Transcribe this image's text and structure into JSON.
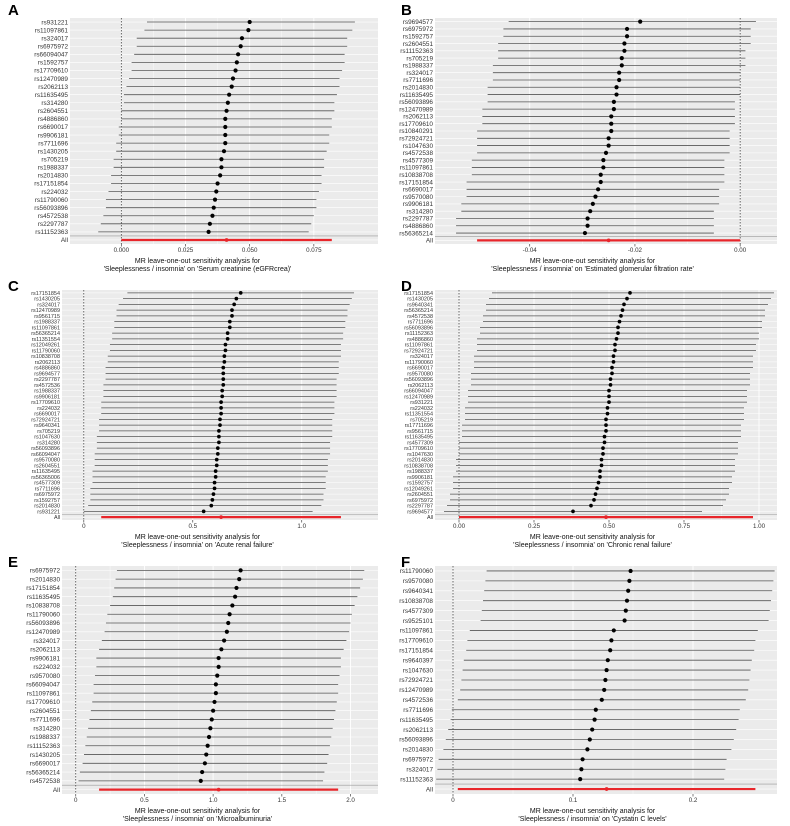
{
  "figure": {
    "panels": [
      "A",
      "B",
      "C",
      "D",
      "E",
      "F"
    ]
  },
  "colors": {
    "panel_bg": "#ebebeb",
    "grid": "#ffffff",
    "point": "#000000",
    "summary": "#e8262b",
    "whisker": "#555555",
    "text": "#333333"
  },
  "chart_data": [
    {
      "panel": "A",
      "type": "forest",
      "title_line1": "MR leave-one-out sensitivity analysis for",
      "title_line2": "'Sleeplessness / insomnia'  on  'Serum creatinine (eGFRcrea)'",
      "xlim": [
        -0.02,
        0.1
      ],
      "xticks": [
        0.0,
        0.025,
        0.05,
        0.075
      ],
      "xtick_labels": [
        "0.000",
        "0.025",
        "0.050",
        "0.075"
      ],
      "ref_line": 0,
      "labels": [
        "rs931221",
        "rs11097861",
        "rs324017",
        "rs6975972",
        "rs66094047",
        "rs1592757",
        "rs17709610",
        "rs12470989",
        "rs2062113",
        "rs11635495",
        "rs314280",
        "rs2604551",
        "rs4886860",
        "rs6690017",
        "rs9906181",
        "rs7711696",
        "rs1430205",
        "rs705219",
        "rs1988337",
        "rs2014830",
        "rs17151854",
        "rs224032",
        "rs11790060",
        "rs56093896",
        "rs4572538",
        "rs2297787",
        "rs11152363"
      ],
      "estimates": [
        0.05,
        0.0495,
        0.047,
        0.0465,
        0.0455,
        0.045,
        0.0445,
        0.0435,
        0.043,
        0.042,
        0.0415,
        0.041,
        0.0405,
        0.0405,
        0.0405,
        0.0405,
        0.04,
        0.039,
        0.039,
        0.0385,
        0.0375,
        0.037,
        0.0365,
        0.036,
        0.0355,
        0.0345,
        0.034
      ],
      "lower": [
        0.01,
        0.009,
        0.006,
        0.006,
        0.005,
        0.004,
        0.004,
        0.003,
        0.002,
        0.001,
        0.001,
        0.0,
        0.0,
        -0.001,
        -0.001,
        -0.002,
        -0.002,
        -0.003,
        -0.003,
        -0.004,
        -0.004,
        -0.005,
        -0.006,
        -0.006,
        -0.007,
        -0.008,
        -0.009
      ],
      "upper": [
        0.091,
        0.09,
        0.088,
        0.088,
        0.087,
        0.087,
        0.086,
        0.085,
        0.085,
        0.084,
        0.083,
        0.083,
        0.082,
        0.082,
        0.081,
        0.081,
        0.08,
        0.079,
        0.079,
        0.078,
        0.078,
        0.077,
        0.076,
        0.076,
        0.075,
        0.074,
        0.073
      ],
      "summary": {
        "label": "All",
        "estimate": 0.041,
        "lower": 0.0,
        "upper": 0.082
      }
    },
    {
      "panel": "B",
      "type": "forest",
      "title_line1": "MR leave-one-out sensitivity analysis for",
      "title_line2": "'Sleeplessness / insomnia'  on  'Estimated glomerular filtration rate'",
      "xlim": [
        -0.058,
        0.007
      ],
      "xticks": [
        -0.04,
        -0.02,
        0.0
      ],
      "xtick_labels": [
        "-0.04",
        "-0.02",
        "0.00"
      ],
      "ref_line": 0,
      "labels": [
        "rs9694577",
        "rs6975972",
        "rs1592757",
        "rs2604551",
        "rs11152363",
        "rs705219",
        "rs1988337",
        "rs324017",
        "rs7711696",
        "rs2014830",
        "rs11635495",
        "rs56093896",
        "rs12470989",
        "rs2062113",
        "rs17709610",
        "rs10840291",
        "rs72924721",
        "rs1047630",
        "rs4572538",
        "rs4577309",
        "rs11097861",
        "rs10838708",
        "rs17151854",
        "rs6690017",
        "rs9570080",
        "rs9906181",
        "rs314280",
        "rs2297787",
        "rs4886860",
        "rs56365214"
      ],
      "estimates": [
        -0.019,
        -0.0215,
        -0.0215,
        -0.022,
        -0.022,
        -0.0225,
        -0.0225,
        -0.023,
        -0.023,
        -0.0235,
        -0.0235,
        -0.024,
        -0.024,
        -0.0245,
        -0.0245,
        -0.0245,
        -0.025,
        -0.025,
        -0.0255,
        -0.026,
        -0.026,
        -0.0265,
        -0.0265,
        -0.027,
        -0.0275,
        -0.028,
        -0.0285,
        -0.029,
        -0.029,
        -0.0295
      ],
      "lower": [
        -0.044,
        -0.045,
        -0.045,
        -0.046,
        -0.046,
        -0.046,
        -0.047,
        -0.047,
        -0.047,
        -0.048,
        -0.048,
        -0.048,
        -0.049,
        -0.049,
        -0.049,
        -0.05,
        -0.05,
        -0.05,
        -0.05,
        -0.051,
        -0.051,
        -0.051,
        -0.052,
        -0.052,
        -0.052,
        -0.053,
        -0.053,
        -0.054,
        -0.054,
        -0.054
      ],
      "upper": [
        0.003,
        0.002,
        0.002,
        0.002,
        0.001,
        0.001,
        0.001,
        0.0,
        0.0,
        0.0,
        0.0,
        -0.001,
        -0.001,
        -0.001,
        -0.001,
        -0.002,
        -0.002,
        -0.002,
        -0.002,
        -0.003,
        -0.003,
        -0.003,
        -0.003,
        -0.004,
        -0.004,
        -0.004,
        -0.005,
        -0.005,
        -0.005,
        -0.005
      ],
      "summary": {
        "label": "All",
        "estimate": -0.025,
        "lower": -0.05,
        "upper": 0.0
      }
    },
    {
      "panel": "C",
      "type": "forest",
      "title_line1": "MR leave-one-out sensitivity analysis for",
      "title_line2": "'Sleeplessness / insomnia'  on  'Acute renal failure'",
      "xlim": [
        -0.1,
        1.35
      ],
      "xticks": [
        0,
        0.5,
        1.0
      ],
      "xtick_labels": [
        "0",
        "0.5",
        "1.0"
      ],
      "ref_line": 0,
      "labels": [
        "rs17151854",
        "rs1430205",
        "rs324017",
        "rs12470989",
        "rs9561715",
        "rs1988337",
        "rs11097861",
        "rs56365214",
        "rs11351554",
        "rs12049261",
        "rs11790060",
        "rs10838708",
        "rs2062113",
        "rs4886860",
        "rs9694577",
        "rs2297787",
        "rs4572536",
        "rs1988337",
        "rs9906181",
        "rs17709610",
        "rs224032",
        "rs6690017",
        "rs72924721",
        "rs9640341",
        "rs705219",
        "rs1047630",
        "rs314280",
        "rs56093896",
        "rs66094047",
        "rs9570080",
        "rs2604551",
        "rs11635495",
        "rs56365006",
        "rs4577309",
        "rs7711696",
        "rs6975972",
        "rs1592757",
        "rs2014830",
        "rs931221"
      ],
      "estimates": [
        0.72,
        0.7,
        0.69,
        0.68,
        0.68,
        0.67,
        0.67,
        0.66,
        0.66,
        0.65,
        0.65,
        0.645,
        0.645,
        0.64,
        0.64,
        0.64,
        0.64,
        0.635,
        0.635,
        0.63,
        0.63,
        0.63,
        0.625,
        0.625,
        0.62,
        0.62,
        0.62,
        0.615,
        0.615,
        0.61,
        0.61,
        0.605,
        0.605,
        0.6,
        0.6,
        0.595,
        0.59,
        0.585,
        0.55
      ],
      "lower": [
        0.2,
        0.18,
        0.16,
        0.15,
        0.15,
        0.14,
        0.14,
        0.13,
        0.13,
        0.12,
        0.12,
        0.11,
        0.11,
        0.1,
        0.1,
        0.1,
        0.09,
        0.09,
        0.09,
        0.08,
        0.08,
        0.08,
        0.07,
        0.07,
        0.07,
        0.06,
        0.06,
        0.06,
        0.05,
        0.05,
        0.05,
        0.04,
        0.04,
        0.04,
        0.03,
        0.03,
        0.03,
        0.02,
        0.0
      ],
      "upper": [
        1.24,
        1.23,
        1.22,
        1.21,
        1.21,
        1.2,
        1.2,
        1.19,
        1.19,
        1.18,
        1.18,
        1.18,
        1.17,
        1.17,
        1.17,
        1.16,
        1.16,
        1.16,
        1.16,
        1.15,
        1.15,
        1.15,
        1.14,
        1.14,
        1.14,
        1.14,
        1.13,
        1.13,
        1.13,
        1.12,
        1.12,
        1.12,
        1.11,
        1.11,
        1.11,
        1.1,
        1.1,
        1.09,
        1.05
      ],
      "summary": {
        "label": "All",
        "estimate": 0.63,
        "lower": 0.08,
        "upper": 1.18
      }
    },
    {
      "panel": "D",
      "type": "forest",
      "title_line1": "MR leave-one-out sensitivity analysis for",
      "title_line2": "'Sleeplessness / insomnia'  on  'Chronic renal failure'",
      "xlim": [
        -0.08,
        1.06
      ],
      "xticks": [
        0,
        0.25,
        0.5,
        0.75,
        1.0
      ],
      "xtick_labels": [
        "0.00",
        "0.25",
        "0.50",
        "0.75",
        "1.00"
      ],
      "ref_line": 0,
      "labels": [
        "rs17151854",
        "rs1430205",
        "rs9640341",
        "rs56365214",
        "rs4572538",
        "rs7711696",
        "rs56093896",
        "rs11152363",
        "rs4886860",
        "rs11097861",
        "rs72924721",
        "rs324017",
        "rs11790060",
        "rs6690017",
        "rs9570080",
        "rs56093896",
        "rs2062113",
        "rs66094047",
        "rs12470989",
        "rs931221",
        "rs224032",
        "rs11351554",
        "rs705219",
        "rs17711696",
        "rs9561715",
        "rs11635495",
        "rs4577309",
        "rs17709610",
        "rs1047630",
        "rs2014830",
        "rs10838708",
        "rs1988337",
        "rs9906181",
        "rs1592757",
        "rs12049261",
        "rs2604551",
        "rs6975972",
        "rs2297787",
        "rs9694577"
      ],
      "estimates": [
        0.57,
        0.56,
        0.55,
        0.545,
        0.54,
        0.535,
        0.53,
        0.53,
        0.525,
        0.52,
        0.52,
        0.515,
        0.515,
        0.51,
        0.51,
        0.505,
        0.505,
        0.5,
        0.5,
        0.5,
        0.495,
        0.495,
        0.49,
        0.49,
        0.49,
        0.485,
        0.485,
        0.48,
        0.48,
        0.475,
        0.475,
        0.47,
        0.47,
        0.465,
        0.46,
        0.455,
        0.45,
        0.44,
        0.38
      ],
      "lower": [
        0.11,
        0.1,
        0.09,
        0.09,
        0.08,
        0.08,
        0.07,
        0.07,
        0.06,
        0.06,
        0.06,
        0.05,
        0.05,
        0.05,
        0.04,
        0.04,
        0.04,
        0.03,
        0.03,
        0.03,
        0.02,
        0.02,
        0.02,
        0.01,
        0.01,
        0.01,
        0.0,
        0.0,
        0.0,
        -0.01,
        -0.01,
        -0.01,
        -0.02,
        -0.02,
        -0.02,
        -0.03,
        -0.03,
        -0.04,
        -0.05
      ],
      "upper": [
        1.05,
        1.04,
        1.03,
        1.02,
        1.02,
        1.01,
        1.01,
        1.0,
        1.0,
        0.99,
        0.99,
        0.98,
        0.98,
        0.98,
        0.97,
        0.97,
        0.97,
        0.96,
        0.96,
        0.96,
        0.95,
        0.95,
        0.95,
        0.94,
        0.94,
        0.94,
        0.93,
        0.93,
        0.93,
        0.92,
        0.92,
        0.92,
        0.91,
        0.91,
        0.9,
        0.9,
        0.89,
        0.88,
        0.81
      ],
      "summary": {
        "label": "All",
        "estimate": 0.49,
        "lower": 0.0,
        "upper": 0.98
      }
    },
    {
      "panel": "E",
      "type": "forest",
      "title_line1": "MR leave-one-out sensitivity analysis for",
      "title_line2": "'Sleeplessness / insomnia'  on  'Microalbuminuria'",
      "xlim": [
        -0.1,
        2.2
      ],
      "xticks": [
        0,
        0.5,
        1.0,
        1.5,
        2.0
      ],
      "xtick_labels": [
        "0",
        "0.5",
        "1.0",
        "1.5",
        "2.0"
      ],
      "ref_line": 0,
      "labels": [
        "rs6975972",
        "rs2014830",
        "rs17151854",
        "rs11635495",
        "rs10838708",
        "rs11790060",
        "rs56093896",
        "rs12470989",
        "rs324017",
        "rs2062113",
        "rs9906181",
        "rs224032",
        "rs9570080",
        "rs66094047",
        "rs11097861",
        "rs17709610",
        "rs2604551",
        "rs7711696",
        "rs314280",
        "rs1988337",
        "rs11152363",
        "rs1430205",
        "rs6690017",
        "rs56365214",
        "rs4572538"
      ],
      "estimates": [
        1.2,
        1.19,
        1.17,
        1.16,
        1.14,
        1.12,
        1.11,
        1.1,
        1.08,
        1.06,
        1.04,
        1.04,
        1.03,
        1.02,
        1.02,
        1.01,
        1.0,
        0.99,
        0.98,
        0.97,
        0.96,
        0.95,
        0.94,
        0.92,
        0.91
      ],
      "lower": [
        0.3,
        0.29,
        0.28,
        0.27,
        0.25,
        0.23,
        0.22,
        0.21,
        0.19,
        0.17,
        0.15,
        0.15,
        0.14,
        0.13,
        0.13,
        0.12,
        0.11,
        0.1,
        0.09,
        0.08,
        0.07,
        0.06,
        0.05,
        0.03,
        0.02
      ],
      "upper": [
        2.1,
        2.09,
        2.07,
        2.05,
        2.03,
        2.01,
        2.0,
        1.99,
        1.97,
        1.95,
        1.93,
        1.93,
        1.92,
        1.91,
        1.91,
        1.9,
        1.89,
        1.88,
        1.87,
        1.86,
        1.85,
        1.84,
        1.83,
        1.81,
        1.8
      ],
      "summary": {
        "label": "All",
        "estimate": 1.04,
        "lower": 0.17,
        "upper": 1.91
      }
    },
    {
      "panel": "F",
      "type": "forest",
      "title_line1": "MR leave-one-out sensitivity analysis for",
      "title_line2": "'Sleeplessness / insomnia'  on  'Cystatin C levels'",
      "xlim": [
        -0.015,
        0.27
      ],
      "xticks": [
        0,
        0.1,
        0.2
      ],
      "xtick_labels": [
        "0",
        "0.1",
        "0.2"
      ],
      "ref_line": 0,
      "labels": [
        "rs11790060",
        "rs9570080",
        "rs9640341",
        "rs10838708",
        "rs4577309",
        "rs9525101",
        "rs11097861",
        "rs17709610",
        "rs17151854",
        "rs9640397",
        "rs1047630",
        "rs72924721",
        "rs12470989",
        "rs4572536",
        "rs7711696",
        "rs11635495",
        "rs2062113",
        "rs56093896",
        "rs2014830",
        "rs6975972",
        "rs324017",
        "rs11152363"
      ],
      "estimates": [
        0.148,
        0.147,
        0.146,
        0.145,
        0.144,
        0.143,
        0.134,
        0.132,
        0.131,
        0.129,
        0.128,
        0.127,
        0.126,
        0.124,
        0.119,
        0.118,
        0.116,
        0.114,
        0.112,
        0.108,
        0.107,
        0.106
      ],
      "lower": [
        0.028,
        0.027,
        0.026,
        0.025,
        0.024,
        0.023,
        0.014,
        0.012,
        0.011,
        0.009,
        0.008,
        0.007,
        0.006,
        0.004,
        -0.001,
        -0.002,
        -0.004,
        -0.006,
        -0.008,
        -0.012,
        -0.013,
        -0.014
      ],
      "upper": [
        0.268,
        0.267,
        0.266,
        0.265,
        0.264,
        0.263,
        0.254,
        0.252,
        0.251,
        0.249,
        0.248,
        0.247,
        0.246,
        0.244,
        0.239,
        0.238,
        0.236,
        0.234,
        0.232,
        0.228,
        0.227,
        0.226
      ],
      "summary": {
        "label": "All",
        "estimate": 0.128,
        "lower": 0.004,
        "upper": 0.252
      }
    }
  ]
}
